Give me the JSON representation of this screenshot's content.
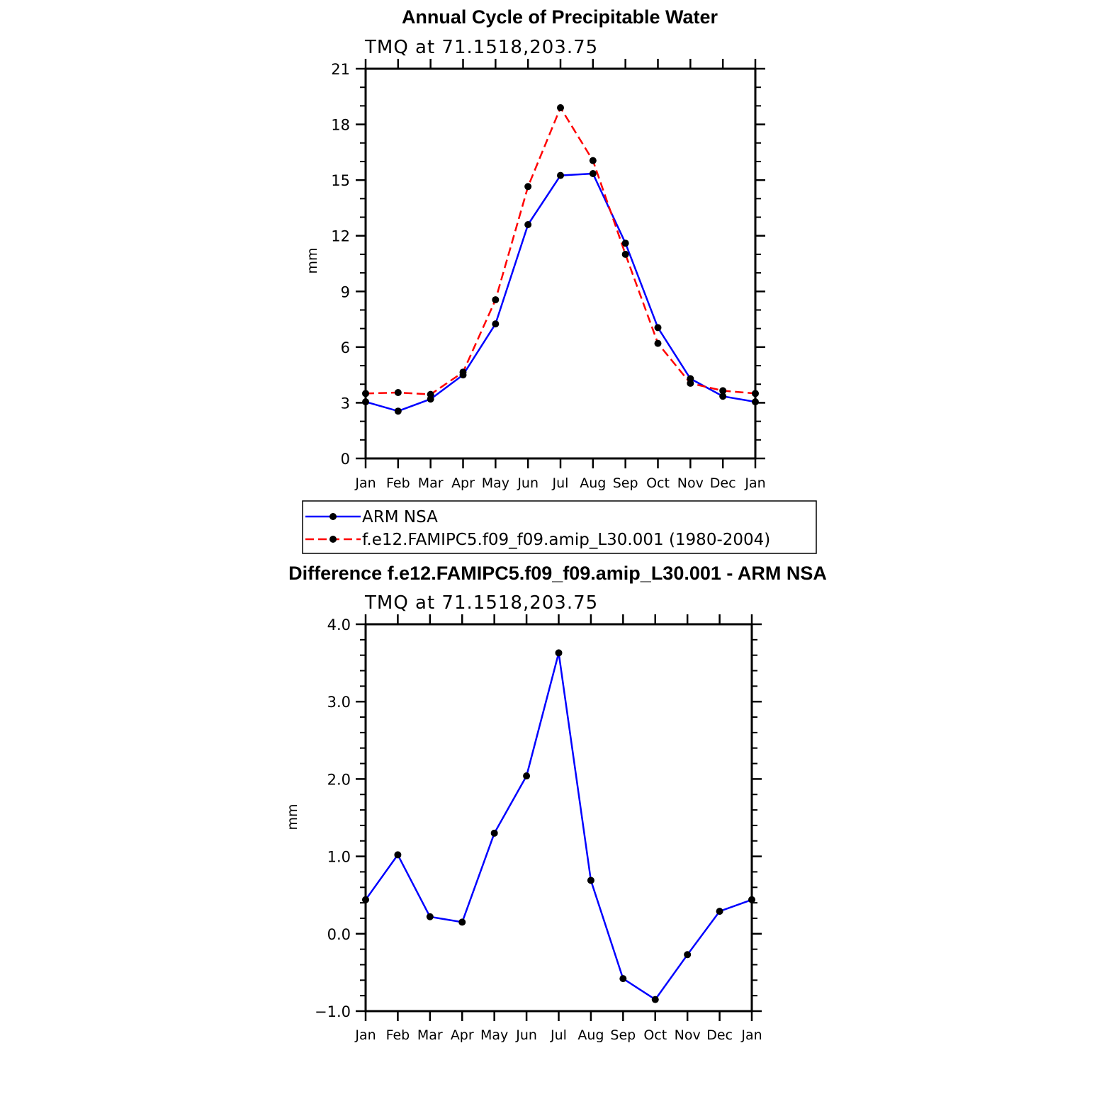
{
  "chart_data": [
    {
      "type": "line",
      "title": "Annual Cycle of Precipitable Water",
      "subtitle": "TMQ  at  71.1518,203.75",
      "xlabel": "",
      "ylabel": "mm",
      "categories": [
        "Jan",
        "Feb",
        "Mar",
        "Apr",
        "May",
        "Jun",
        "Jul",
        "Aug",
        "Sep",
        "Oct",
        "Nov",
        "Dec",
        "Jan"
      ],
      "ylim": [
        0,
        21
      ],
      "yticks": [
        0,
        3,
        6,
        9,
        12,
        15,
        18,
        21
      ],
      "ytick_labels": [
        "0",
        "3",
        "6",
        "9",
        "12",
        "15",
        "18",
        "21"
      ],
      "grid": false,
      "legend_placement": "bottom",
      "series": [
        {
          "name": "ARM  NSA",
          "color": "#0000ff",
          "dash": "solid",
          "values": [
            3.05,
            2.55,
            3.2,
            4.5,
            7.25,
            12.6,
            15.25,
            15.35,
            11.6,
            7.05,
            4.3,
            3.35,
            3.05
          ]
        },
        {
          "name": "f.e12.FAMIPC5.f09_f09.amip_L30.001 (1980-2004)",
          "color": "#ff0000",
          "dash": "dashed",
          "values": [
            3.5,
            3.55,
            3.45,
            4.65,
            8.55,
            14.65,
            18.9,
            16.05,
            11.0,
            6.2,
            4.05,
            3.65,
            3.5
          ]
        }
      ]
    },
    {
      "type": "line",
      "title": "Difference f.e12.FAMIPC5.f09_f09.amip_L30.001 - ARM NSA",
      "subtitle": "TMQ  at  71.1518,203.75",
      "xlabel": "",
      "ylabel": "mm",
      "categories": [
        "Jan",
        "Feb",
        "Mar",
        "Apr",
        "May",
        "Jun",
        "Jul",
        "Aug",
        "Sep",
        "Oct",
        "Nov",
        "Dec",
        "Jan"
      ],
      "ylim": [
        -1.0,
        4.0
      ],
      "yticks": [
        -1.0,
        0.0,
        1.0,
        2.0,
        3.0,
        4.0
      ],
      "ytick_labels": [
        "−1.0",
        "0.0",
        "1.0",
        "2.0",
        "3.0",
        "4.0"
      ],
      "grid": false,
      "series": [
        {
          "color": "#0000ff",
          "dash": "solid",
          "values": [
            0.44,
            1.02,
            0.22,
            0.15,
            1.3,
            2.04,
            3.63,
            0.69,
            -0.58,
            -0.85,
            -0.27,
            0.29,
            0.44
          ]
        }
      ]
    }
  ]
}
